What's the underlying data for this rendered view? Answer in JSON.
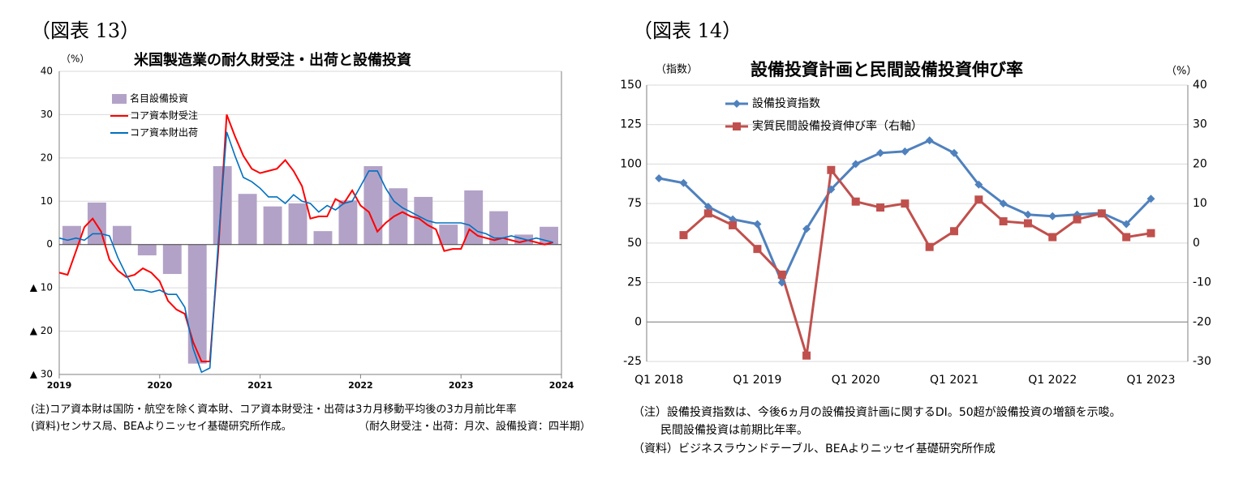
{
  "left": {
    "figure_label": "（図表 13）",
    "note1": "(注)コア資本財は国防・航空を除く資本財、コア資本財受注・出荷は3カ月移動平均後の3カ月前比年率",
    "note2": "(資料)センサス局、BEAよりニッセイ基礎研究所作成。",
    "note3": "（耐久財受注・出荷：月次、設備投資：四半期）"
  },
  "right": {
    "figure_label": "（図表 14）",
    "note1": "（注）設備投資指数は、今後6ヵ月の設備投資計画に関するDI。50超が設備投資の増額を示唆。",
    "note2": "民間設備投資は前期比年率。",
    "note3": "（資料）ビジネスラウンドテーブル、BEAよりニッセイ基礎研究所作成"
  },
  "colors": {
    "bar": "#b3a2c7",
    "core_orders": "#ff0000",
    "core_shipments": "#0070c0",
    "index": "#4f81bd",
    "real_investment": "#c0504d",
    "grid": "#d9d9d9",
    "axis": "#808080"
  },
  "chart_data": [
    {
      "type": "bar+line",
      "title": "米国製造業の耐久財受注・出荷と設備投資",
      "ylabel": "（%）",
      "ylim": [
        -30,
        40
      ],
      "yticks": [
        40,
        30,
        20,
        10,
        0,
        -10,
        -20,
        -30
      ],
      "ytick_labels": [
        "40",
        "30",
        "20",
        "10",
        "0",
        "▲ 10",
        "▲ 20",
        "▲ 30"
      ],
      "xlim": [
        2019.0,
        2024.0
      ],
      "xticks": [
        "2019",
        "2020",
        "2021",
        "2022",
        "2023",
        "2024"
      ],
      "grid": true,
      "legend": "top-left",
      "bars": {
        "name": "名目設備投資",
        "x": [
          2019.125,
          2019.375,
          2019.625,
          2019.875,
          2020.125,
          2020.375,
          2020.625,
          2020.875,
          2021.125,
          2021.375,
          2021.625,
          2021.875,
          2022.125,
          2022.375,
          2022.625,
          2022.875,
          2023.125,
          2023.375,
          2023.625,
          2023.875
        ],
        "values": [
          4.3,
          9.7,
          4.3,
          -2.5,
          -6.8,
          -27.5,
          18.1,
          11.7,
          8.8,
          9.5,
          3.1,
          10.2,
          18.1,
          13.0,
          11.0,
          4.6,
          12.5,
          7.7,
          2.3,
          4.1
        ]
      },
      "series": [
        {
          "name": "コア資本財受注",
          "x": [
            2019.0,
            2019.083,
            2019.167,
            2019.25,
            2019.333,
            2019.417,
            2019.5,
            2019.583,
            2019.667,
            2019.75,
            2019.833,
            2019.917,
            2020.0,
            2020.083,
            2020.167,
            2020.25,
            2020.333,
            2020.417,
            2020.5,
            2020.583,
            2020.667,
            2020.75,
            2020.833,
            2020.917,
            2021.0,
            2021.083,
            2021.167,
            2021.25,
            2021.333,
            2021.417,
            2021.5,
            2021.583,
            2021.667,
            2021.75,
            2021.833,
            2021.917,
            2022.0,
            2022.083,
            2022.167,
            2022.25,
            2022.333,
            2022.417,
            2022.5,
            2022.583,
            2022.667,
            2022.75,
            2022.833,
            2022.917,
            2023.0,
            2023.083,
            2023.167,
            2023.25,
            2023.333,
            2023.417,
            2023.5,
            2023.583,
            2023.667,
            2023.75,
            2023.833,
            2023.917
          ],
          "values": [
            -6.5,
            -7.0,
            -1.5,
            4.0,
            6.0,
            3.0,
            -3.5,
            -6.0,
            -7.5,
            -7.0,
            -5.5,
            -6.5,
            -8.5,
            -13.0,
            -15.0,
            -16.0,
            -22.5,
            -27.0,
            -27.0,
            -1.5,
            30.0,
            25.0,
            20.5,
            17.5,
            16.5,
            17.0,
            17.5,
            19.5,
            17.0,
            13.5,
            6.0,
            6.5,
            6.5,
            10.5,
            9.5,
            12.5,
            9.0,
            7.5,
            3.0,
            5.0,
            6.5,
            7.5,
            6.5,
            6.0,
            4.5,
            3.5,
            -1.5,
            -1.0,
            -1.0,
            3.5,
            2.0,
            1.5,
            1.0,
            1.5,
            1.0,
            0.5,
            1.0,
            0.5,
            0.0,
            0.5
          ]
        },
        {
          "name": "コア資本財出荷",
          "x": [
            2019.0,
            2019.083,
            2019.167,
            2019.25,
            2019.333,
            2019.417,
            2019.5,
            2019.583,
            2019.667,
            2019.75,
            2019.833,
            2019.917,
            2020.0,
            2020.083,
            2020.167,
            2020.25,
            2020.333,
            2020.417,
            2020.5,
            2020.583,
            2020.667,
            2020.75,
            2020.833,
            2020.917,
            2021.0,
            2021.083,
            2021.167,
            2021.25,
            2021.333,
            2021.417,
            2021.5,
            2021.583,
            2021.667,
            2021.75,
            2021.833,
            2021.917,
            2022.0,
            2022.083,
            2022.167,
            2022.25,
            2022.333,
            2022.417,
            2022.5,
            2022.583,
            2022.667,
            2022.75,
            2022.833,
            2022.917,
            2023.0,
            2023.083,
            2023.167,
            2023.25,
            2023.333,
            2023.417,
            2023.5,
            2023.583,
            2023.667,
            2023.75,
            2023.833,
            2023.917
          ],
          "values": [
            1.5,
            1.0,
            1.5,
            1.0,
            2.5,
            2.5,
            2.0,
            -3.0,
            -7.0,
            -10.5,
            -10.5,
            -11.0,
            -10.5,
            -11.5,
            -11.5,
            -14.5,
            -24.0,
            -29.5,
            -28.5,
            0.5,
            26.0,
            20.5,
            15.5,
            14.5,
            13.0,
            11.0,
            11.0,
            9.5,
            11.5,
            10.0,
            9.5,
            7.5,
            9.0,
            8.0,
            9.5,
            10.0,
            13.5,
            17.0,
            17.0,
            13.0,
            10.0,
            8.5,
            7.5,
            6.5,
            5.5,
            5.0,
            5.0,
            5.0,
            5.0,
            4.5,
            3.0,
            2.5,
            1.5,
            1.5,
            2.0,
            1.5,
            1.0,
            1.5,
            1.0,
            0.5
          ]
        }
      ]
    },
    {
      "type": "line",
      "title": "設備投資計画と民間設備投資伸び率",
      "ylabel_left": "（指数）",
      "ylabel_right": "（%）",
      "ylim_left": [
        -25,
        150
      ],
      "ylim_right": [
        -30,
        40
      ],
      "yticks_left": [
        150,
        125,
        100,
        75,
        50,
        25,
        0,
        -25
      ],
      "yticks_right": [
        40,
        30,
        20,
        10,
        0,
        -10,
        -20,
        -30
      ],
      "categories": [
        "Q1 2018",
        "Q2 2018",
        "Q3 2018",
        "Q4 2018",
        "Q1 2019",
        "Q2 2019",
        "Q3 2019",
        "Q4 2019",
        "Q1 2020",
        "Q2 2020",
        "Q3 2020",
        "Q4 2020",
        "Q1 2021",
        "Q2 2021",
        "Q3 2021",
        "Q4 2021",
        "Q1 2022",
        "Q2 2022",
        "Q3 2022",
        "Q4 2022",
        "Q1 2023",
        "Q2 2023"
      ],
      "xtick_labels": [
        "Q1 2018",
        "",
        "",
        "",
        "Q1 2019",
        "",
        "",
        "",
        "Q1 2020",
        "",
        "",
        "",
        "Q1 2021",
        "",
        "",
        "",
        "Q1 2022",
        "",
        "",
        "",
        "Q1 2023",
        ""
      ],
      "grid": true,
      "legend": "top-left",
      "series": [
        {
          "name": "設備投資指数",
          "axis": "left",
          "values": [
            91,
            88,
            73,
            65,
            62,
            25,
            59,
            84,
            100,
            107,
            108,
            115,
            107,
            87,
            75,
            68,
            67,
            68,
            69,
            62,
            78,
            null
          ]
        },
        {
          "name": "実質民間設備投資伸び率（右軸）",
          "axis": "right",
          "values": [
            null,
            2.0,
            7.5,
            4.5,
            -1.5,
            -8.0,
            -28.5,
            18.5,
            10.5,
            9.0,
            10.0,
            -1.0,
            3.0,
            11.0,
            5.5,
            5.0,
            1.5,
            6.0,
            7.5,
            1.5,
            2.5,
            null
          ]
        }
      ]
    }
  ]
}
